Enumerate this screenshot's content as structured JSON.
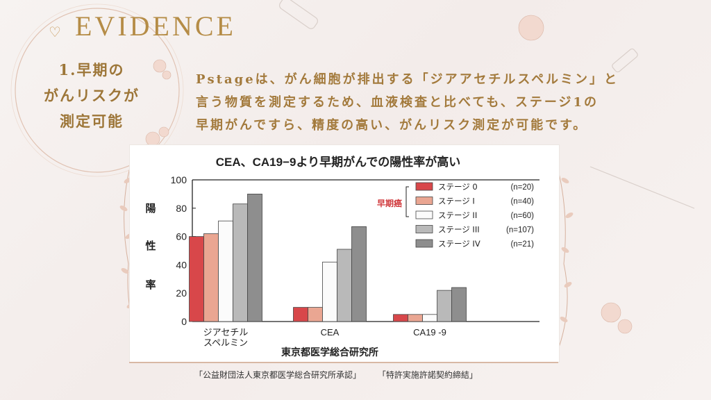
{
  "slide": {
    "header_title": "EVIDENCE",
    "section_title_lines": [
      "1.早期の",
      "がんリスクが",
      "測定可能"
    ],
    "description_lines": [
      "Pstageは、がん細胞が排出する「ジアアセチルスペルミン」と",
      "言う物質を測定するため、血液検査と比べても、ステージ1の",
      "早期がんですら、精度の高い、がんリスク測定が可能です。"
    ],
    "footer": [
      "「公益財団法人東京都医学総合研究所承認」",
      "「特許実施許諾契約締結」"
    ],
    "colors": {
      "gold": "#b58c46",
      "text_gold": "#a37a3c",
      "accent_red": "#d0393c"
    }
  },
  "chart_data": {
    "type": "bar",
    "title": "CEA、CA19−9より早期がんでの陽性率が高い",
    "ylabel": "陽性率",
    "ylabel_chars": [
      "陽",
      "性",
      "率"
    ],
    "xlabel": "東京都医学総合研究所",
    "categories": [
      [
        "ジアセチル",
        "スペルミン"
      ],
      [
        "CEA"
      ],
      [
        "CA19 -9"
      ]
    ],
    "ylim": [
      0,
      100
    ],
    "yticks": [
      0,
      20,
      40,
      60,
      80,
      100
    ],
    "bracket_label": "早期癌",
    "series": [
      {
        "name": "ステージ 0",
        "n": "(n=20)",
        "color": "#d8474a",
        "values": [
          60,
          10,
          5
        ]
      },
      {
        "name": "ステージ I",
        "n": "(n=40)",
        "color": "#eaa692",
        "values": [
          62,
          10,
          5
        ]
      },
      {
        "name": "ステージ II",
        "n": "(n=60)",
        "color": "#fbfbfb",
        "values": [
          71,
          42,
          5
        ]
      },
      {
        "name": "ステージ III",
        "n": "(n=107)",
        "color": "#b9b9b9",
        "values": [
          83,
          51,
          22
        ]
      },
      {
        "name": "ステージ IV",
        "n": "(n=21)",
        "color": "#8e8e8e",
        "values": [
          90,
          67,
          24
        ]
      }
    ],
    "grid": false,
    "legend_position": "top-right"
  }
}
